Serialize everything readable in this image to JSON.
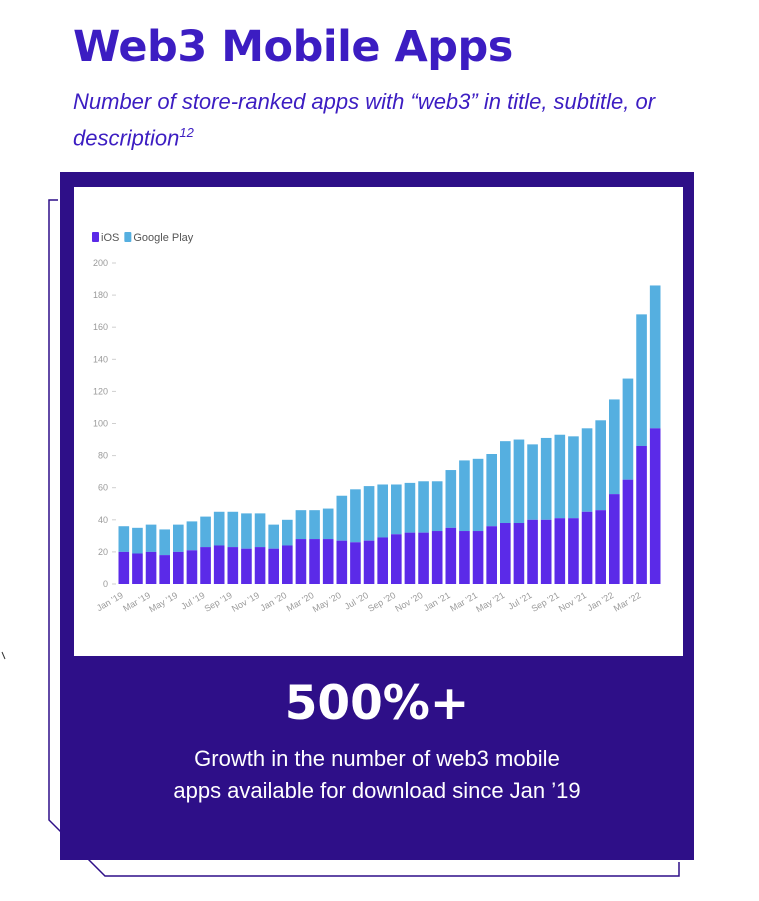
{
  "header": {
    "title": "Web3 Mobile Apps",
    "subtitle": "Number of store-ranked apps with “web3” in title, subtitle, or description",
    "footnote": "12"
  },
  "colors": {
    "title": "#3c1dc2",
    "panel": "#2e0f88",
    "ios": "#5b2ae8",
    "google_play": "#55afe0"
  },
  "stat": {
    "value": "500%+",
    "caption_line1": "Growth in the number of web3 mobile",
    "caption_line2": "apps available for download since Jan ’19"
  },
  "chart_data": {
    "type": "bar",
    "stacked": true,
    "legend_position": "top-left",
    "categories": [
      "Jan '19",
      "Feb '19",
      "Mar '19",
      "Apr '19",
      "May '19",
      "Jun '19",
      "Jul '19",
      "Aug '19",
      "Sep '19",
      "Oct '19",
      "Nov '19",
      "Dec '19",
      "Jan '20",
      "Feb '20",
      "Mar '20",
      "Apr '20",
      "May '20",
      "Jun '20",
      "Jul '20",
      "Aug '20",
      "Sep '20",
      "Oct '20",
      "Nov '20",
      "Dec '20",
      "Jan '21",
      "Feb '21",
      "Mar '21",
      "Apr '21",
      "May '21",
      "Jun '21",
      "Jul '21",
      "Aug '21",
      "Sep '21",
      "Oct '21",
      "Nov '21",
      "Dec '21",
      "Jan '22",
      "Feb '22",
      "Mar '22",
      "Apr '22"
    ],
    "tick_labels": [
      "Jan '19",
      "Mar '19",
      "May '19",
      "Jul '19",
      "Sep '19",
      "Nov '19",
      "Jan '20",
      "Mar '20",
      "May '20",
      "Jul '20",
      "Sep '20",
      "Nov '20",
      "Jan '21",
      "Mar '21",
      "May '21",
      "Jul '21",
      "Sep '21",
      "Nov '21",
      "Jan '22",
      "Mar '22"
    ],
    "series": [
      {
        "name": "iOS",
        "color": "#5b2ae8",
        "values": [
          20,
          19,
          20,
          18,
          20,
          21,
          23,
          24,
          23,
          22,
          23,
          22,
          24,
          28,
          28,
          28,
          27,
          26,
          27,
          29,
          31,
          32,
          32,
          33,
          35,
          33,
          33,
          36,
          38,
          38,
          40,
          40,
          41,
          41,
          45,
          46,
          56,
          65,
          86,
          97
        ]
      },
      {
        "name": "Google Play",
        "color": "#55afe0",
        "values": [
          16,
          16,
          17,
          16,
          17,
          18,
          19,
          21,
          22,
          22,
          21,
          15,
          16,
          18,
          18,
          19,
          28,
          33,
          34,
          33,
          31,
          31,
          32,
          31,
          36,
          44,
          45,
          45,
          51,
          52,
          47,
          51,
          52,
          51,
          52,
          56,
          59,
          63,
          82,
          89
        ]
      }
    ],
    "y_ticks": [
      0,
      20,
      40,
      60,
      80,
      100,
      120,
      140,
      160,
      180,
      200
    ],
    "ylim": [
      0,
      200
    ],
    "grid": false
  }
}
